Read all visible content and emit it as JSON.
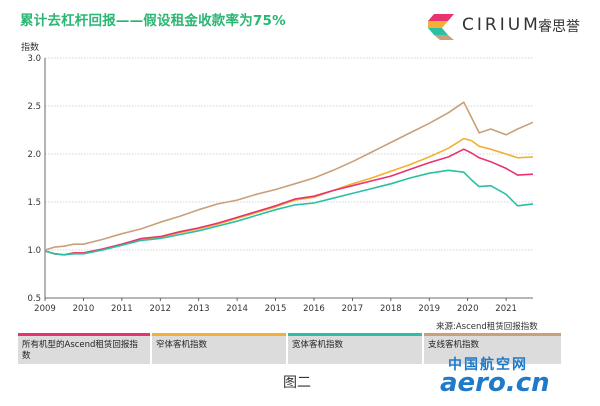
{
  "title": "累计去杠杆回报——假设租金收款率为75%",
  "brand": {
    "name": "CIRIUM",
    "cn_name": "睿思誉",
    "logo_icon": "cirium-logo-icon"
  },
  "source": "来源:Ascend租赁回报指数",
  "figure_caption": "图二",
  "watermark": {
    "cn": "中国航空网",
    "en": "aero.cn"
  },
  "legend": [
    {
      "label": "所有机型的Ascend租赁回报指数",
      "color": "#e8336e"
    },
    {
      "label": "窄体客机指数",
      "color": "#f2b134"
    },
    {
      "label": "宽体客机指数",
      "color": "#2bbfa4"
    },
    {
      "label": "支线客机指数",
      "color": "#c9a07a"
    }
  ],
  "chart_data": {
    "type": "line",
    "ylabel": "指数",
    "xlabel": "",
    "ylim": [
      0.5,
      3.0
    ],
    "xlim": [
      2009,
      2021.7
    ],
    "yticks": [
      "0.5",
      "1.0",
      "1.5",
      "2.0",
      "2.5",
      "3.0"
    ],
    "xticks": [
      "2009",
      "2010",
      "2011",
      "2012",
      "2013",
      "2014",
      "2015",
      "2016",
      "2017",
      "2018",
      "2019",
      "2020",
      "2021"
    ],
    "grid": "horizontal",
    "x": [
      2009.0,
      2009.25,
      2009.5,
      2009.75,
      2010.0,
      2010.5,
      2011.0,
      2011.5,
      2012.0,
      2012.5,
      2013.0,
      2013.5,
      2014.0,
      2014.5,
      2015.0,
      2015.5,
      2016.0,
      2016.5,
      2017.0,
      2017.5,
      2018.0,
      2018.5,
      2019.0,
      2019.5,
      2019.9,
      2020.1,
      2020.3,
      2020.6,
      2021.0,
      2021.3,
      2021.7
    ],
    "series": [
      {
        "name": "所有机型的Ascend租赁回报指数",
        "color": "#e8336e",
        "values": [
          0.99,
          0.96,
          0.95,
          0.97,
          0.97,
          1.01,
          1.06,
          1.12,
          1.14,
          1.19,
          1.23,
          1.28,
          1.34,
          1.4,
          1.46,
          1.53,
          1.56,
          1.62,
          1.67,
          1.72,
          1.77,
          1.84,
          1.91,
          1.97,
          2.05,
          2.01,
          1.96,
          1.92,
          1.85,
          1.78,
          1.79
        ]
      },
      {
        "name": "窄体客机指数",
        "color": "#f2b134",
        "values": [
          0.99,
          0.96,
          0.95,
          0.97,
          0.97,
          1.01,
          1.06,
          1.11,
          1.13,
          1.18,
          1.22,
          1.27,
          1.33,
          1.39,
          1.45,
          1.52,
          1.55,
          1.62,
          1.69,
          1.75,
          1.82,
          1.89,
          1.97,
          2.06,
          2.16,
          2.14,
          2.08,
          2.05,
          2.0,
          1.96,
          1.97
        ]
      },
      {
        "name": "宽体客机指数",
        "color": "#2bbfa4",
        "values": [
          0.99,
          0.96,
          0.95,
          0.96,
          0.96,
          1.0,
          1.05,
          1.1,
          1.12,
          1.16,
          1.2,
          1.25,
          1.3,
          1.36,
          1.42,
          1.47,
          1.49,
          1.54,
          1.59,
          1.64,
          1.69,
          1.75,
          1.8,
          1.83,
          1.81,
          1.73,
          1.66,
          1.67,
          1.58,
          1.46,
          1.48
        ]
      },
      {
        "name": "支线客机指数",
        "color": "#c9a07a",
        "values": [
          1.0,
          1.03,
          1.04,
          1.06,
          1.06,
          1.11,
          1.17,
          1.22,
          1.29,
          1.35,
          1.42,
          1.48,
          1.52,
          1.58,
          1.63,
          1.69,
          1.75,
          1.83,
          1.92,
          2.02,
          2.12,
          2.22,
          2.32,
          2.43,
          2.54,
          2.38,
          2.22,
          2.26,
          2.2,
          2.26,
          2.33
        ]
      }
    ]
  }
}
